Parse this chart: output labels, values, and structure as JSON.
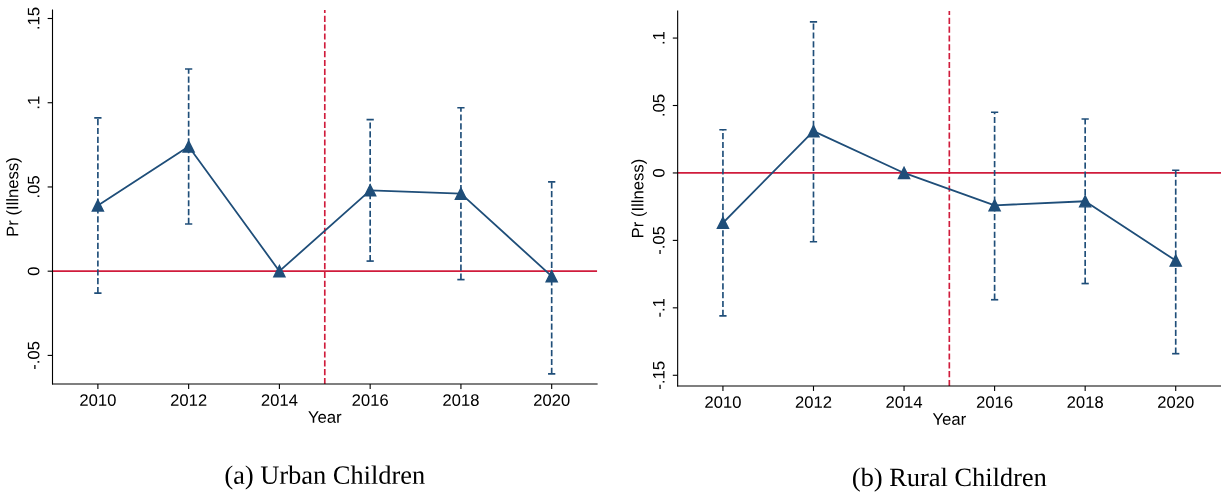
{
  "chart_data": [
    {
      "type": "line",
      "title": "(a) Urban Children",
      "xlabel": "Year",
      "ylabel": "Pr (Illness)",
      "x": [
        2010,
        2012,
        2014,
        2016,
        2018,
        2020
      ],
      "series": [
        {
          "color": "#1f4e79",
          "values": [
            0.039,
            0.074,
            0,
            0.048,
            0.046,
            -0.003
          ],
          "errors": [
            [
              -0.013,
              0.091
            ],
            [
              0.028,
              0.12
            ],
            null,
            [
              0.006,
              0.09
            ],
            [
              -0.005,
              0.097
            ],
            [
              -0.061,
              0.053
            ]
          ]
        }
      ],
      "marker": "triangle",
      "line_style": "solid",
      "xlim": [
        2009,
        2021
      ],
      "xticks": [
        2010,
        2012,
        2014,
        2016,
        2018,
        2020
      ],
      "ylim": [
        -0.067,
        0.155
      ],
      "yticks": [
        {
          "value": -0.05,
          "label": "-.05"
        },
        0,
        {
          "value": 0.05,
          "label": ".05"
        },
        {
          "value": 0.1,
          "label": ".1"
        },
        {
          "value": 0.15,
          "label": ".15"
        }
      ],
      "ref_lines": [
        {
          "axis": "y",
          "value": 0,
          "color": "#d01c3c",
          "line_style": "solid"
        },
        {
          "axis": "x",
          "value": 2015,
          "color": "#d01c3c",
          "line_style": "dashed"
        }
      ],
      "grid": false,
      "legend": false
    },
    {
      "type": "line",
      "title": "(b) Rural Children",
      "xlabel": "Year",
      "ylabel": "Pr (Illness)",
      "x": [
        2010,
        2012,
        2014,
        2016,
        2018,
        2020
      ],
      "series": [
        {
          "color": "#1f4e79",
          "values": [
            -0.037,
            0.031,
            0,
            -0.024,
            -0.021,
            -0.065
          ],
          "errors": [
            [
              -0.106,
              0.032
            ],
            [
              -0.051,
              0.112
            ],
            null,
            [
              -0.094,
              0.045
            ],
            [
              -0.082,
              0.04
            ],
            [
              -0.134,
              0.002
            ]
          ]
        }
      ],
      "marker": "triangle",
      "line_style": "solid",
      "xlim": [
        2009,
        2021
      ],
      "xticks": [
        2010,
        2012,
        2014,
        2016,
        2018,
        2020
      ],
      "ylim": [
        -0.158,
        0.12
      ],
      "yticks": [
        {
          "value": -0.15,
          "label": "-.15"
        },
        {
          "value": -0.1,
          "label": "-.1"
        },
        {
          "value": -0.05,
          "label": "-.05"
        },
        0,
        {
          "value": 0.05,
          "label": ".05"
        },
        {
          "value": 0.1,
          "label": ".1"
        }
      ],
      "ref_lines": [
        {
          "axis": "y",
          "value": 0,
          "color": "#d01c3c",
          "line_style": "solid"
        },
        {
          "axis": "x",
          "value": 2015,
          "color": "#d01c3c",
          "line_style": "dashed"
        }
      ],
      "grid": false,
      "legend": false
    }
  ]
}
